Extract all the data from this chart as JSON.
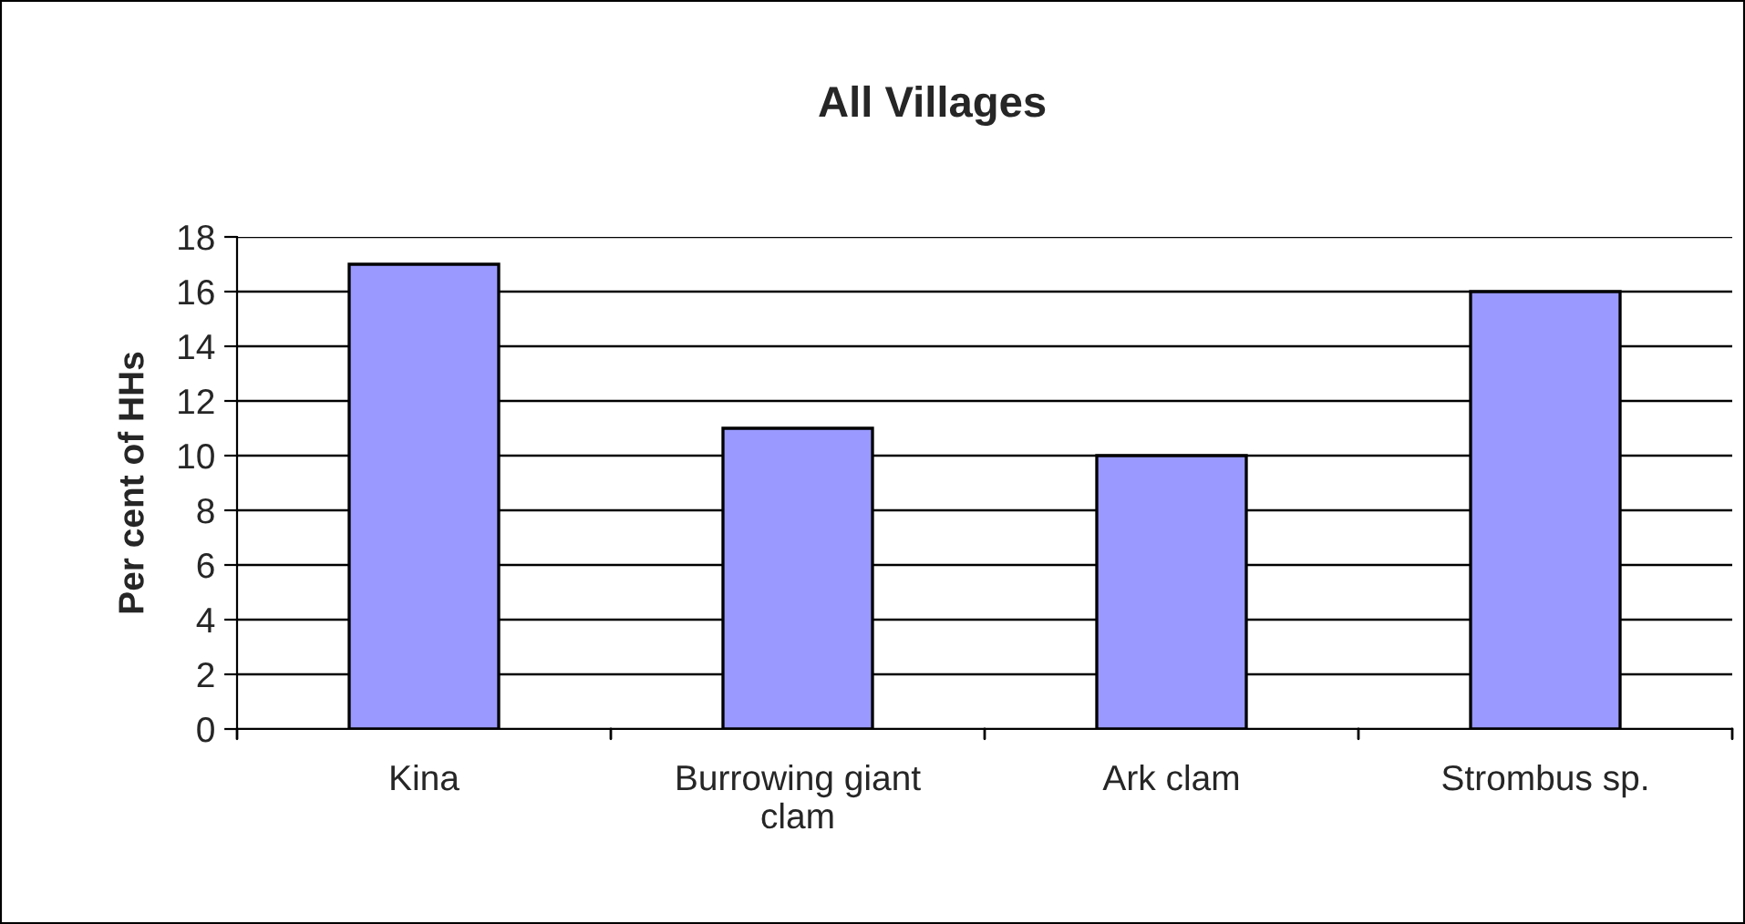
{
  "chart_data": {
    "type": "bar",
    "title": "All Villages",
    "ylabel": "Per cent of HHs",
    "categories": [
      "Kina",
      "Burrowing giant\nclam",
      "Ark clam",
      "Strombus sp."
    ],
    "values": [
      17,
      11,
      10,
      16
    ],
    "color": "#9999ff",
    "ylim": [
      0,
      18
    ],
    "yticks": [
      0,
      2,
      4,
      6,
      8,
      10,
      12,
      14,
      16,
      18
    ],
    "grid": "y",
    "legend": false
  }
}
